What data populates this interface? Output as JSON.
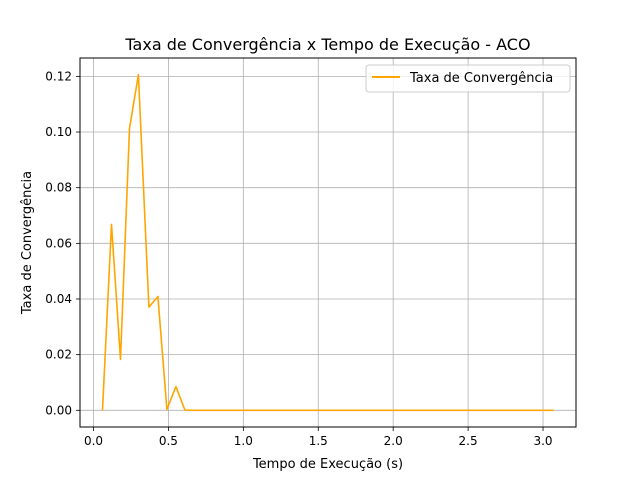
{
  "chart_data": {
    "type": "line",
    "title": "Taxa de Convergência x Tempo de Execução - ACO",
    "xlabel": "Tempo de Execução (s)",
    "ylabel": "Taxa de Convergência",
    "xlim": [
      -0.09,
      3.22
    ],
    "ylim": [
      -0.006,
      0.1266
    ],
    "grid": true,
    "legend_position": "top-right",
    "x_ticks": [
      0.0,
      0.5,
      1.0,
      1.5,
      2.0,
      2.5,
      3.0
    ],
    "x_tick_labels": [
      "0.0",
      "0.5",
      "1.0",
      "1.5",
      "2.0",
      "2.5",
      "3.0"
    ],
    "y_ticks": [
      0.0,
      0.02,
      0.04,
      0.06,
      0.08,
      0.1,
      0.12
    ],
    "y_tick_labels": [
      "0.00",
      "0.02",
      "0.04",
      "0.06",
      "0.08",
      "0.10",
      "0.12"
    ],
    "series": [
      {
        "name": "Taxa de Convergência",
        "color": "#ffa500",
        "x": [
          0.06,
          0.12,
          0.18,
          0.24,
          0.3,
          0.37,
          0.43,
          0.49,
          0.55,
          0.61,
          0.67,
          0.73,
          0.8,
          0.86,
          0.92,
          0.98,
          1.04,
          1.1,
          1.16,
          1.23,
          1.29,
          1.35,
          1.41,
          1.47,
          1.53,
          1.59,
          1.66,
          1.72,
          1.78,
          1.84,
          1.9,
          1.96,
          2.02,
          2.09,
          2.15,
          2.21,
          2.27,
          2.33,
          2.39,
          2.45,
          2.52,
          2.58,
          2.64,
          2.7,
          2.76,
          2.82,
          2.88,
          2.95,
          3.01,
          3.07
        ],
        "y": [
          0.0,
          0.0668,
          0.0183,
          0.1013,
          0.1206,
          0.0371,
          0.0409,
          0.0003,
          0.0085,
          0.0001,
          0.0,
          0.0,
          0.0,
          0.0,
          0.0,
          0.0,
          0.0,
          0.0,
          0.0,
          0.0,
          0.0,
          0.0,
          0.0,
          0.0,
          0.0,
          0.0,
          0.0,
          0.0,
          0.0,
          0.0,
          0.0,
          0.0,
          0.0,
          0.0,
          0.0,
          0.0,
          0.0,
          0.0,
          0.0,
          0.0,
          0.0,
          0.0,
          0.0,
          0.0,
          0.0,
          0.0,
          0.0,
          0.0,
          0.0,
          0.0
        ]
      }
    ]
  }
}
